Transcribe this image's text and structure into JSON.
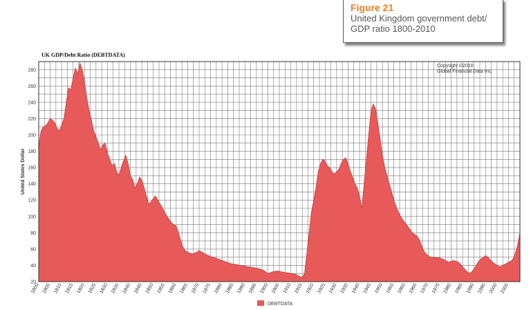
{
  "figure_box": {
    "label": "Figure 21",
    "caption_line1": "United Kingdom government debt/",
    "caption_line2": "GDP ratio 1800-2010"
  },
  "colors": {
    "fill": "#e85a5a",
    "stroke": "#c23a3a",
    "accent": "#f07d1e"
  },
  "chart_data": {
    "type": "area",
    "title": "UK GDP/Debt Ratio (DEBTDATA)",
    "ylabel": "United States Dollar",
    "xlabel": "",
    "copyright_line1": "Copyright ©2010",
    "copyright_line2": "Global Financial Data Inc.",
    "legend": "DEBTDATA",
    "legend_position": "bottom",
    "grid": true,
    "ylim": [
      20,
      290
    ],
    "xlim": [
      1800,
      2010
    ],
    "yticks": [
      20,
      40,
      60,
      80,
      100,
      120,
      140,
      160,
      180,
      200,
      220,
      240,
      260,
      280
    ],
    "xticks": [
      1800,
      1805,
      1810,
      1815,
      1820,
      1825,
      1830,
      1835,
      1840,
      1845,
      1850,
      1855,
      1860,
      1865,
      1870,
      1875,
      1880,
      1885,
      1890,
      1895,
      1900,
      1905,
      1910,
      1915,
      1920,
      1925,
      1930,
      1935,
      1940,
      1945,
      1950,
      1955,
      1960,
      1965,
      1970,
      1975,
      1980,
      1985,
      1990,
      1995,
      2000,
      2005
    ],
    "series": [
      {
        "x": [
          1800,
          1801,
          1802,
          1803,
          1804,
          1805,
          1806,
          1807,
          1808,
          1809,
          1810,
          1811,
          1812,
          1813,
          1814,
          1815,
          1816,
          1817,
          1818,
          1819,
          1820,
          1821,
          1822,
          1823,
          1824,
          1825,
          1826,
          1827,
          1828,
          1829,
          1830,
          1831,
          1832,
          1833,
          1834,
          1835,
          1836,
          1837,
          1838,
          1839,
          1840,
          1841,
          1842,
          1843,
          1844,
          1845,
          1846,
          1847,
          1848,
          1849,
          1850,
          1851,
          1852,
          1853,
          1854,
          1855,
          1856,
          1857,
          1858,
          1859,
          1860,
          1861,
          1862,
          1863,
          1864,
          1865,
          1866,
          1867,
          1868,
          1869,
          1870,
          1872,
          1874,
          1876,
          1878,
          1880,
          1882,
          1884,
          1886,
          1888,
          1890,
          1892,
          1894,
          1896,
          1898,
          1900,
          1902,
          1904,
          1906,
          1908,
          1910,
          1912,
          1914,
          1915,
          1916,
          1917,
          1918,
          1919,
          1920,
          1921,
          1922,
          1923,
          1924,
          1925,
          1926,
          1927,
          1928,
          1929,
          1930,
          1931,
          1932,
          1933,
          1934,
          1935,
          1936,
          1937,
          1938,
          1939,
          1940,
          1941,
          1942,
          1943,
          1944,
          1945,
          1946,
          1947,
          1948,
          1949,
          1950,
          1951,
          1952,
          1953,
          1954,
          1955,
          1956,
          1957,
          1958,
          1959,
          1960,
          1961,
          1962,
          1963,
          1964,
          1965,
          1966,
          1967,
          1968,
          1969,
          1970,
          1971,
          1972,
          1973,
          1974,
          1975,
          1976,
          1977,
          1978,
          1979,
          1980,
          1981,
          1982,
          1983,
          1984,
          1985,
          1986,
          1987,
          1988,
          1989,
          1990,
          1991,
          1992,
          1993,
          1994,
          1995,
          1996,
          1997,
          1998,
          1999,
          2000,
          2001,
          2002,
          2003,
          2004,
          2005,
          2006,
          2007,
          2008,
          2009,
          2010
        ],
        "values": [
          185,
          205,
          210,
          211,
          215,
          220,
          218,
          215,
          208,
          205,
          212,
          220,
          240,
          258,
          255,
          270,
          282,
          275,
          288,
          280,
          265,
          245,
          230,
          218,
          205,
          198,
          190,
          182,
          188,
          190,
          178,
          170,
          162,
          165,
          155,
          150,
          160,
          168,
          175,
          165,
          150,
          145,
          135,
          140,
          148,
          145,
          135,
          125,
          115,
          118,
          122,
          125,
          120,
          115,
          110,
          105,
          100,
          96,
          92,
          90,
          88,
          80,
          70,
          62,
          58,
          56,
          55,
          54,
          55,
          56,
          58,
          55,
          52,
          50,
          48,
          46,
          44,
          42,
          41,
          40,
          39,
          38,
          37,
          36,
          34,
          30,
          32,
          33,
          32,
          31,
          30,
          29,
          26,
          25,
          30,
          55,
          80,
          105,
          120,
          135,
          155,
          165,
          170,
          168,
          162,
          160,
          155,
          152,
          155,
          158,
          165,
          170,
          172,
          165,
          155,
          148,
          140,
          135,
          125,
          110,
          140,
          170,
          200,
          230,
          238,
          232,
          215,
          195,
          175,
          160,
          150,
          140,
          130,
          120,
          112,
          105,
          100,
          95,
          92,
          88,
          84,
          80,
          78,
          76,
          72,
          65,
          58,
          54,
          52,
          50,
          50,
          49,
          50,
          49,
          48,
          47,
          45,
          44,
          45,
          46,
          45,
          44,
          42,
          38,
          35,
          32,
          30,
          32,
          36,
          40,
          45,
          48,
          50,
          52,
          50,
          47,
          44,
          42,
          40,
          38,
          39,
          41,
          42,
          44,
          45,
          48,
          55,
          65,
          80
        ]
      }
    ]
  }
}
